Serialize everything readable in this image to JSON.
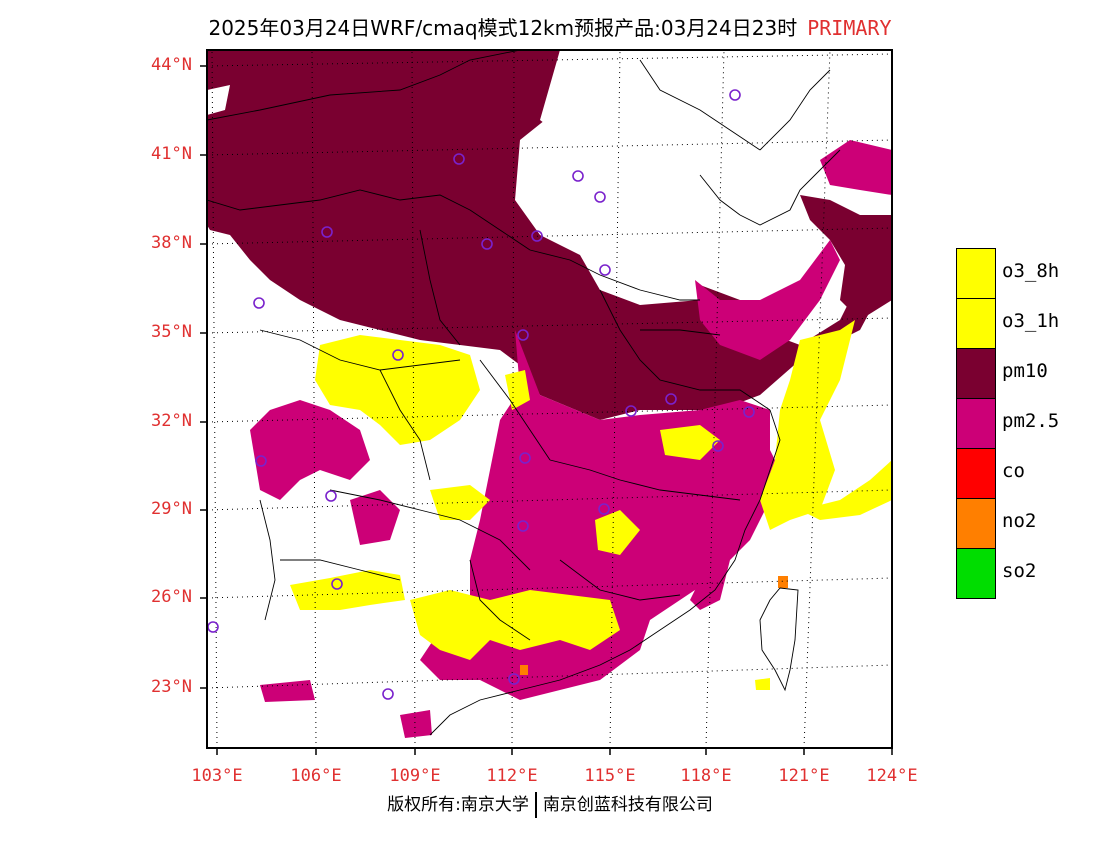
{
  "title": {
    "main": "2025年03月24日WRF/cmaq模式12km预报产品:03月24日23时",
    "tag": "PRIMARY"
  },
  "footer": {
    "left": "版权所有:南京大学",
    "right": "南京创蓝科技有限公司"
  },
  "lat_labels": [
    "44°N",
    "41°N",
    "38°N",
    "35°N",
    "32°N",
    "29°N",
    "26°N",
    "23°N"
  ],
  "lon_labels": [
    "103°E",
    "106°E",
    "109°E",
    "112°E",
    "115°E",
    "118°E",
    "121°E",
    "124°E"
  ],
  "legend": [
    {
      "label": "o3_8h",
      "color": "#ffff00"
    },
    {
      "label": "o3_1h",
      "color": "#ffff00"
    },
    {
      "label": "pm10",
      "color": "#7a0030"
    },
    {
      "label": "pm2.5",
      "color": "#cc0077"
    },
    {
      "label": "co",
      "color": "#ff0000"
    },
    {
      "label": "no2",
      "color": "#ff7f00"
    },
    {
      "label": "so2",
      "color": "#00dd00"
    }
  ],
  "colors": {
    "pm10": "#7a0030",
    "pm25": "#cc0077",
    "o3": "#ffff00",
    "no2": "#ff7f00",
    "label_red": "#e03030",
    "station": "#7a22cc"
  }
}
